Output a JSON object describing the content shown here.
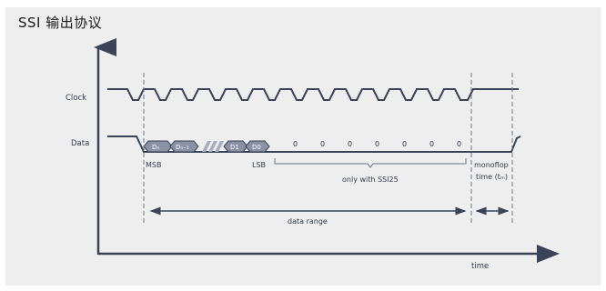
{
  "title": "SSI 输出协议",
  "labels": {
    "clock": "Clock",
    "data": "Data",
    "msb": "MSB",
    "lsb": "LSB",
    "only_with": "only with SSI25",
    "monoflop_line1": "monoflop",
    "monoflop_line2": "time (tₘ)",
    "data_range": "data range",
    "time": "time"
  },
  "bits": {
    "dn": "Dₙ",
    "dn1": "Dₙ₋₁",
    "d1": "D1",
    "d0": "D0",
    "zeros": [
      "0",
      "0",
      "0",
      "0",
      "0",
      "0",
      "0",
      "0"
    ]
  },
  "colors": {
    "panel": "#eeeeef",
    "signal": "#3a4357",
    "bit_fill": "#8a92a6",
    "dash": "#6b7280"
  }
}
